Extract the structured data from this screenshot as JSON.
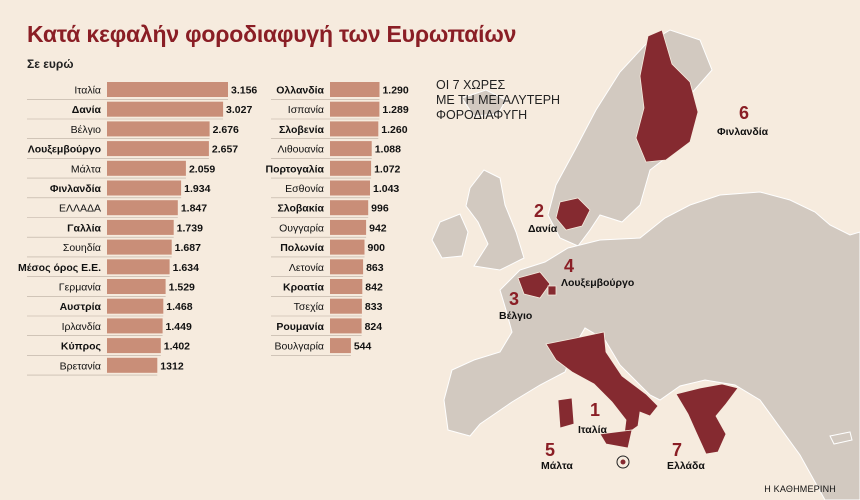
{
  "title": "Κατά κεφαλήν φοροδιαφυγή των Ευρωπαίων",
  "subtitle": "Σε ευρώ",
  "map_title": "ΟΙ 7 ΧΩΡΕΣ\nΜΕ ΤΗ ΜΕΓΑΛΥΤΕΡΗ\nΦΟΡΟΔΙΑΦΥΓΗ",
  "map_labels": [
    {
      "rank": "6",
      "name": "Φινλανδία"
    },
    {
      "rank": "2",
      "name": "Δανία"
    },
    {
      "rank": "4",
      "name": "Λουξεμβούργο"
    },
    {
      "rank": "3",
      "name": "Βέλγιο"
    },
    {
      "rank": "1",
      "name": "Ιταλία"
    },
    {
      "rank": "5",
      "name": "Μάλτα"
    },
    {
      "rank": "7",
      "name": "Ελλάδα"
    }
  ],
  "credit": "Η ΚΑΘΗΜΕΡΙΝΗ",
  "colors": {
    "bar": "#c98e78",
    "title": "#8a1e25",
    "highlight": "#852a30",
    "land": "#d2c9c0",
    "sea": "#f6ebde"
  },
  "chart_data": [
    {
      "type": "bar",
      "orientation": "horizontal",
      "categories": [
        "Ιταλία",
        "Δανία",
        "Βέλγιο",
        "Λουξεμβούργο",
        "Μάλτα",
        "Φινλανδία",
        "ΕΛΛΑΔΑ",
        "Γαλλία",
        "Σουηδία",
        "Μέσος όρος Ε.Ε.",
        "Γερμανία",
        "Αυστρία",
        "Ιρλανδία",
        "Κύπρος",
        "Βρετανία"
      ],
      "values": [
        3156,
        3027,
        2676,
        2657,
        2059,
        1934,
        1847,
        1739,
        1687,
        1634,
        1529,
        1468,
        1449,
        1402,
        1312
      ],
      "value_labels": [
        "3.156",
        "3.027",
        "2.676",
        "2.657",
        "2.059",
        "1.934",
        "1.847",
        "1.739",
        "1.687",
        "1.634",
        "1.529",
        "1.468",
        "1.449",
        "1.402",
        "1312"
      ],
      "bold": [
        false,
        true,
        false,
        true,
        false,
        true,
        false,
        true,
        false,
        true,
        false,
        true,
        false,
        true,
        false
      ]
    },
    {
      "type": "bar",
      "orientation": "horizontal",
      "categories": [
        "Ολλανδία",
        "Ισπανία",
        "Σλοβενία",
        "Λιθουανία",
        "Πορτογαλία",
        "Εσθονία",
        "Σλοβακία",
        "Ουγγαρία",
        "Πολωνία",
        "Λετονία",
        "Κροατία",
        "Τσεχία",
        "Ρουμανία",
        "Βουλγαρία"
      ],
      "values": [
        1290,
        1289,
        1260,
        1088,
        1072,
        1043,
        996,
        942,
        900,
        863,
        842,
        833,
        824,
        544
      ],
      "value_labels": [
        "1.290",
        "1.289",
        "1.260",
        "1.088",
        "1.072",
        "1.043",
        "996",
        "942",
        "900",
        "863",
        "842",
        "833",
        "824",
        "544"
      ],
      "bold": [
        true,
        false,
        true,
        false,
        true,
        false,
        true,
        false,
        true,
        false,
        true,
        false,
        true,
        false
      ]
    }
  ]
}
